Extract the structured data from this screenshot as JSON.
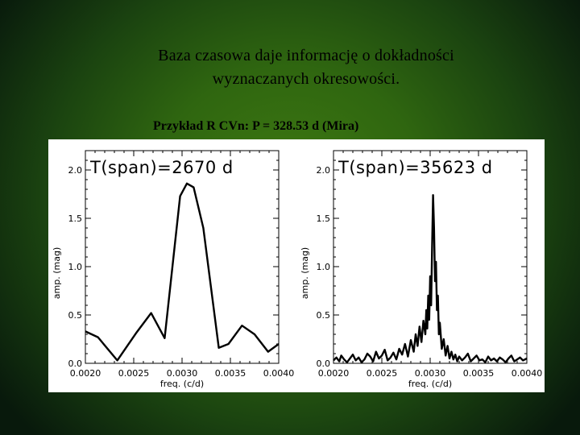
{
  "slide": {
    "title_line1": "Baza czasowa daje informację o dokładności",
    "title_line2": "wyznaczanych okresowości.",
    "subtitle": "Przykład R CVn: P = 328.53 d  (Mira)"
  },
  "chart_data": [
    {
      "type": "line",
      "annotation": "T(span)=2670 d",
      "xlabel": "freq. (c/d)",
      "ylabel": "amp. (mag)",
      "xlim": [
        0.002,
        0.004
      ],
      "ylim": [
        0.0,
        2.2
      ],
      "xticks": [
        "0.0020",
        "0.0025",
        "0.0030",
        "0.0035",
        "0.0040"
      ],
      "yticks": [
        "0.0",
        "0.5",
        "1.0",
        "1.5",
        "2.0"
      ],
      "line_color": "#000000",
      "x": [
        0.002,
        0.00213,
        0.00233,
        0.00253,
        0.00268,
        0.00282,
        0.00298,
        0.00305,
        0.00312,
        0.00322,
        0.00338,
        0.00348,
        0.00362,
        0.00375,
        0.00389,
        0.004
      ],
      "y": [
        0.33,
        0.27,
        0.03,
        0.32,
        0.52,
        0.26,
        1.73,
        1.86,
        1.82,
        1.4,
        0.16,
        0.2,
        0.39,
        0.3,
        0.12,
        0.2
      ]
    },
    {
      "type": "line",
      "annotation": "T(span)=35623 d",
      "xlabel": "freq. (c/d)",
      "ylabel": "amp. (mag)",
      "xlim": [
        0.002,
        0.004
      ],
      "ylim": [
        0.0,
        2.2
      ],
      "xticks": [
        "0.0020",
        "0.0025",
        "0.0030",
        "0.0035",
        "0.0040"
      ],
      "yticks": [
        "0.0",
        "0.5",
        "1.0",
        "1.5",
        "2.0"
      ],
      "line_color": "#000000",
      "x": [
        0.002,
        0.00203,
        0.00206,
        0.00208,
        0.00211,
        0.00214,
        0.00217,
        0.0022,
        0.00223,
        0.00226,
        0.00229,
        0.00232,
        0.00235,
        0.00238,
        0.00241,
        0.00244,
        0.00247,
        0.0025,
        0.00253,
        0.00256,
        0.00259,
        0.00262,
        0.00265,
        0.00268,
        0.00271,
        0.00274,
        0.00277,
        0.0028,
        0.00283,
        0.00285,
        0.00287,
        0.00289,
        0.00291,
        0.00293,
        0.00295,
        0.00296,
        0.00297,
        0.00298,
        0.00299,
        0.003,
        0.00301,
        0.00302,
        0.00303,
        0.00304,
        0.00305,
        0.00306,
        0.00307,
        0.00308,
        0.00309,
        0.0031,
        0.00312,
        0.00314,
        0.00316,
        0.00318,
        0.0032,
        0.00322,
        0.00324,
        0.00326,
        0.00328,
        0.0033,
        0.00333,
        0.00336,
        0.00339,
        0.00342,
        0.00345,
        0.00348,
        0.00351,
        0.00354,
        0.00357,
        0.0036,
        0.00363,
        0.00366,
        0.00369,
        0.00372,
        0.00375,
        0.00378,
        0.00381,
        0.00384,
        0.00387,
        0.0039,
        0.00393,
        0.00396,
        0.004
      ],
      "y": [
        0.03,
        0.06,
        0.02,
        0.08,
        0.04,
        0.01,
        0.05,
        0.09,
        0.03,
        0.06,
        0.01,
        0.04,
        0.1,
        0.07,
        0.02,
        0.12,
        0.05,
        0.08,
        0.14,
        0.03,
        0.06,
        0.11,
        0.04,
        0.15,
        0.09,
        0.2,
        0.07,
        0.24,
        0.12,
        0.3,
        0.18,
        0.38,
        0.22,
        0.44,
        0.3,
        0.55,
        0.36,
        0.7,
        0.45,
        0.9,
        0.6,
        1.2,
        1.74,
        1.4,
        0.85,
        1.05,
        0.55,
        0.7,
        0.3,
        0.42,
        0.15,
        0.25,
        0.08,
        0.18,
        0.05,
        0.12,
        0.04,
        0.09,
        0.02,
        0.07,
        0.03,
        0.06,
        0.1,
        0.02,
        0.05,
        0.08,
        0.03,
        0.04,
        0.01,
        0.07,
        0.03,
        0.05,
        0.02,
        0.06,
        0.04,
        0.01,
        0.05,
        0.08,
        0.02,
        0.04,
        0.06,
        0.03,
        0.05
      ]
    }
  ]
}
